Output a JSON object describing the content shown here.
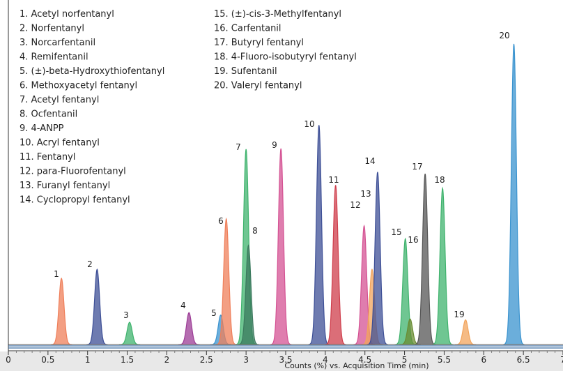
{
  "chart_data": {
    "type": "area",
    "title": "",
    "xlabel": "Counts (%) vs. Acquisition Time (min)",
    "ylabel": "",
    "xlim": [
      0,
      7
    ],
    "ylim": [
      0,
      100
    ],
    "x_ticks": [
      "0",
      "0.5",
      "1",
      "1.5",
      "2",
      "2.5",
      "3",
      "3.5",
      "4",
      "4.5",
      "5",
      "5.5",
      "6",
      "6.5",
      "7"
    ],
    "x_tick_values": [
      0,
      0.5,
      1,
      1.5,
      2,
      2.5,
      3,
      3.5,
      4,
      4.5,
      5,
      5.5,
      6,
      6.5,
      7
    ],
    "legend_col1": [
      "1.   Acetyl norfentanyl",
      "2.   Norfentanyl",
      "3.   Norcarfentanil",
      "4.   Remifentanil",
      "5.   (±)-beta-Hydroxythiofentanyl",
      "6.   Methoxyacetyl fentanyl",
      "7.   Acetyl fentanyl",
      "8.   Ocfentanil",
      "9.   4-ANPP",
      "10.  Acryl fentanyl",
      "11.  Fentanyl",
      "12.  para-Fluorofentanyl",
      "13.  Furanyl fentanyl",
      "14.  Cyclopropyl fentanyl"
    ],
    "legend_col2": [
      "15.  (±)-cis-3-Methylfentanyl",
      "16.  Carfentanil",
      "17.  Butyryl fentanyl",
      "18.  4-Fluoro-isobutyryl fentanyl",
      "19.  Sufentanil",
      "20.  Valeryl fentanyl"
    ],
    "peaks": [
      {
        "label": "1",
        "x": 0.67,
        "y": 22.0,
        "color": "#ef7f5a"
      },
      {
        "label": "2",
        "x": 1.12,
        "y": 25.0,
        "color": "#3d4f96"
      },
      {
        "label": "3",
        "x": 1.53,
        "y": 7.4,
        "color": "#3fb36d"
      },
      {
        "label": "4",
        "x": 2.28,
        "y": 10.6,
        "color": "#9c3c96"
      },
      {
        "label": "5",
        "x": 2.68,
        "y": 9.8,
        "color": "#3a93cf"
      },
      {
        "label": "6",
        "x": 2.75,
        "y": 41.8,
        "color": "#ef7f5a"
      },
      {
        "label": "7",
        "x": 3.0,
        "y": 65.0,
        "color": "#3fb36d"
      },
      {
        "label": "8",
        "x": 3.03,
        "y": 33.0,
        "color": "#3b7a5e"
      },
      {
        "label": "9",
        "x": 3.44,
        "y": 65.2,
        "color": "#d45293"
      },
      {
        "label": "10",
        "x": 3.92,
        "y": 73.0,
        "color": "#3d4f96"
      },
      {
        "label": "11",
        "x": 4.13,
        "y": 53.0,
        "color": "#cf3d4b"
      },
      {
        "label": "12",
        "x": 4.49,
        "y": 39.5,
        "color": "#d45293"
      },
      {
        "label": "13",
        "x": 4.59,
        "y": 25.0,
        "color": "#f2a45c"
      },
      {
        "label": "14",
        "x": 4.66,
        "y": 57.4,
        "color": "#3d4f96"
      },
      {
        "label": "15",
        "x": 5.01,
        "y": 35.2,
        "color": "#3fb36d"
      },
      {
        "label": "16",
        "x": 5.07,
        "y": 8.5,
        "color": "#6a8c33"
      },
      {
        "label": "17",
        "x": 5.26,
        "y": 56.8,
        "color": "#555555"
      },
      {
        "label": "18",
        "x": 5.48,
        "y": 52.0,
        "color": "#3fb36d"
      },
      {
        "label": "19",
        "x": 5.77,
        "y": 8.2,
        "color": "#f2a45c"
      },
      {
        "label": "20",
        "x": 6.38,
        "y": 100.0,
        "color": "#3a93cf"
      }
    ],
    "grid": false,
    "legend_position": "top-left"
  }
}
